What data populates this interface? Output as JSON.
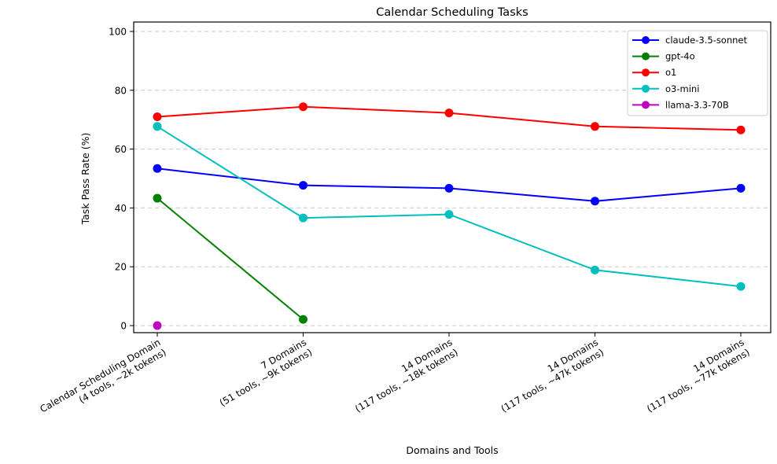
{
  "chart_data": {
    "type": "line",
    "title": "Calendar Scheduling Tasks",
    "xlabel": "Domains and Tools",
    "ylabel": "Task Pass Rate (%)",
    "ylim": [
      0,
      100
    ],
    "yticks": [
      0,
      20,
      40,
      60,
      80,
      100
    ],
    "grid": "horizontal-dashed",
    "grid_color": "#c9c9c9",
    "legend_position": "upper-right",
    "categories": [
      [
        "Calendar Scheduling Domain",
        "(4 tools, ~2k tokens)"
      ],
      [
        "7 Domains",
        "(51 tools, ~9k tokens)"
      ],
      [
        "14 Domains",
        "(117 tools, ~18k tokens)"
      ],
      [
        "14 Domains",
        "(117 tools, ~47k tokens)"
      ],
      [
        "14 Domains",
        "(117 tools, ~77k tokens)"
      ]
    ],
    "series": [
      {
        "name": "claude-3.5-sonnet",
        "color": "#0000ff",
        "values": [
          53.4,
          47.7,
          46.7,
          42.3,
          46.7
        ]
      },
      {
        "name": "gpt-4o",
        "color": "#008000",
        "values": [
          43.3,
          2.1,
          null,
          null,
          null
        ]
      },
      {
        "name": "o1",
        "color": "#ff0000",
        "values": [
          71.0,
          74.4,
          72.3,
          67.7,
          66.5
        ]
      },
      {
        "name": "o3-mini",
        "color": "#00bfbf",
        "values": [
          67.7,
          36.6,
          37.8,
          18.9,
          13.3
        ]
      },
      {
        "name": "llama-3.3-70B",
        "color": "#bf00bf",
        "values": [
          0.0,
          null,
          null,
          null,
          null
        ]
      }
    ]
  }
}
